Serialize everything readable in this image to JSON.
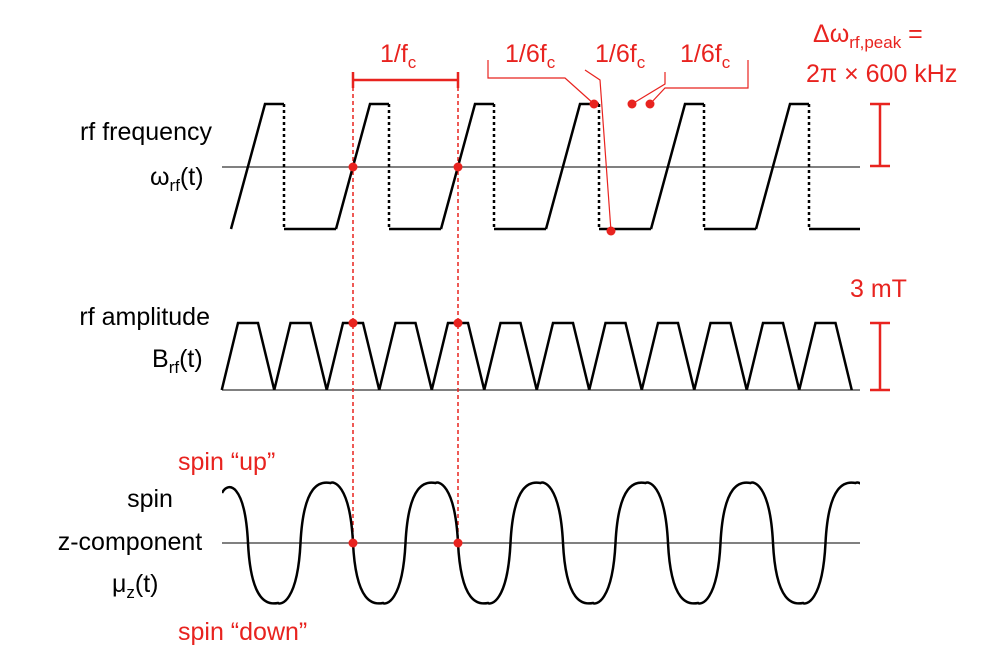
{
  "period_label": {
    "base": "1/f",
    "sub": "c"
  },
  "sixth_labels": [
    {
      "base": "1/6f",
      "sub": "c"
    },
    {
      "base": "1/6f",
      "sub": "c"
    },
    {
      "base": "1/6f",
      "sub": "c"
    }
  ],
  "frequency_peak": {
    "base": "Δω",
    "sub": "rf,peak",
    "tail": " =",
    "line2": "2π × 600 kHz"
  },
  "amplitude_peak": "3 mT",
  "rows": [
    {
      "title": "rf frequency",
      "symbol": {
        "base": "ω",
        "sub": "rf",
        "tail": "(t)"
      }
    },
    {
      "title": "rf amplitude",
      "symbol": {
        "base": "B",
        "sub": "rf",
        "tail": "(t)"
      }
    },
    {
      "title": "spin",
      "title2": "z-component",
      "symbol": {
        "base": "μ",
        "sub": "z",
        "tail": "(t)"
      }
    }
  ],
  "spin_up": "spin “up”",
  "spin_down": "spin “down”"
}
